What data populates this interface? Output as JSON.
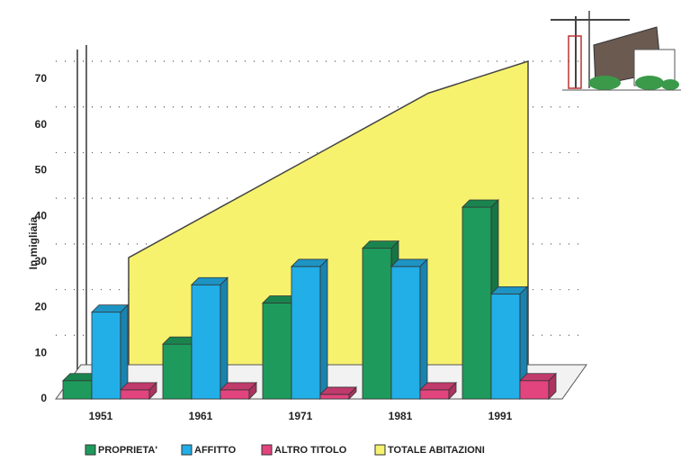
{
  "chart_data": {
    "type": "bar",
    "y_label": "In migliaia",
    "categories": [
      "1951",
      "1961",
      "1971",
      "1981",
      "1991"
    ],
    "series": [
      {
        "name": "PROPRIETA'",
        "color": "#1e9b5c",
        "values": [
          4,
          12,
          21,
          33,
          42
        ]
      },
      {
        "name": "AFFITTO",
        "color": "#22aee6",
        "values": [
          19,
          25,
          29,
          29,
          23
        ]
      },
      {
        "name": "ALTRO TITOLO",
        "color": "#e2447e",
        "values": [
          2,
          2,
          1,
          2,
          4
        ]
      },
      {
        "name": "TOTALE ABITAZIONI",
        "color": "#f6f26e",
        "style": "area",
        "values": [
          27,
          39,
          51,
          63,
          70
        ]
      }
    ],
    "ylim": [
      0,
      70
    ],
    "yticks": [
      0,
      10,
      20,
      30,
      40,
      50,
      60,
      70
    ],
    "grid": true
  }
}
